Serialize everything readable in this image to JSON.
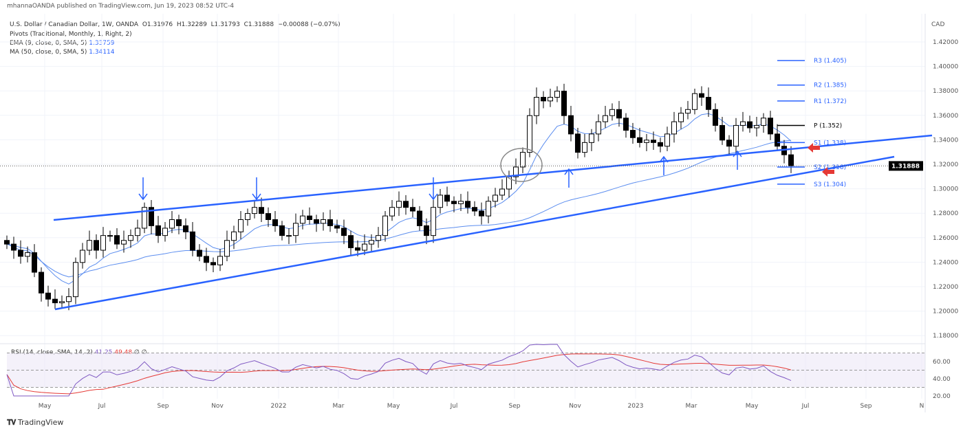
{
  "header": {
    "published": "mhannaOANDA published on TradingView.com, Jun 19, 2023 08:52 UTC-4",
    "symbol": "U.S. Dollar / Canadian Dollar, 1W, OANDA",
    "open": "O1.31976",
    "high": "H1.32289",
    "low": "L1.31793",
    "close": "C1.31888",
    "change": "−0.00088 (−0.07%)",
    "pivots": "Pivots (Traditional, Monthly, 1, Right, 2)",
    "ema_label": "EMA (9, close, 0, SMA, 5)",
    "ema_value": "1.33759",
    "ma_label": "MA (50, close, 0, SMA, 5)",
    "ma_value": "1.34114"
  },
  "rsi": {
    "label": "RSI (14, close, SMA, 14, 2)",
    "value": "41.25",
    "sma_value": "49.48",
    "extra": "∅ ∅"
  },
  "footer": {
    "brand": "TradingView"
  },
  "colors": {
    "up": "#ffffff",
    "down": "#000000",
    "trend": "#2962ff",
    "rsi": "#7e57c2",
    "rsi_ma": "#e53935"
  },
  "chart_data": {
    "type": "candlestick",
    "title": "U.S. Dollar / Canadian Dollar, 1W, OANDA",
    "currency": "CAD",
    "closes": [
      1.255,
      1.25,
      1.245,
      1.248,
      1.232,
      1.215,
      1.21,
      1.207,
      1.208,
      1.212,
      1.24,
      1.25,
      1.258,
      1.25,
      1.262,
      1.262,
      1.255,
      1.258,
      1.262,
      1.268,
      1.285,
      1.27,
      1.262,
      1.268,
      1.275,
      1.27,
      1.265,
      1.25,
      1.245,
      1.24,
      1.238,
      1.245,
      1.258,
      1.265,
      1.275,
      1.28,
      1.285,
      1.28,
      1.275,
      1.27,
      1.262,
      1.262,
      1.272,
      1.278,
      1.275,
      1.272,
      1.275,
      1.27,
      1.268,
      1.262,
      1.252,
      1.25,
      1.255,
      1.258,
      1.262,
      1.278,
      1.285,
      1.29,
      1.285,
      1.282,
      1.27,
      1.262,
      1.285,
      1.295,
      1.29,
      1.288,
      1.29,
      1.285,
      1.282,
      1.278,
      1.29,
      1.295,
      1.3,
      1.31,
      1.318,
      1.33,
      1.36,
      1.375,
      1.372,
      1.375,
      1.38,
      1.36,
      1.345,
      1.33,
      1.338,
      1.345,
      1.355,
      1.36,
      1.365,
      1.358,
      1.348,
      1.342,
      1.338,
      1.34,
      1.338,
      1.335,
      1.345,
      1.355,
      1.362,
      1.365,
      1.378,
      1.375,
      1.365,
      1.352,
      1.34,
      1.335,
      1.352,
      1.355,
      1.35,
      1.352,
      1.358,
      1.345,
      1.335,
      1.328,
      1.319
    ],
    "y_ticks": [
      "1.42000",
      "1.40000",
      "1.38000",
      "1.36000",
      "1.34000",
      "1.32000",
      "1.30000",
      "1.28000",
      "1.26000",
      "1.24000",
      "1.22000",
      "1.20000",
      "1.18000"
    ],
    "ylim": [
      1.17,
      1.43
    ],
    "last_price": "1.31888",
    "x_ticks": [
      "May",
      "Jul",
      "Sep",
      "Nov",
      "2022",
      "Mar",
      "May",
      "Jul",
      "Sep",
      "Nov",
      "2023",
      "Mar",
      "May",
      "Jul",
      "Sep",
      "N"
    ],
    "pivots": [
      {
        "label": "R3 (1.405)",
        "value": 1.405
      },
      {
        "label": "R2 (1.385)",
        "value": 1.385
      },
      {
        "label": "R1 (1.372)",
        "value": 1.372
      },
      {
        "label": "P (1.352)",
        "value": 1.352
      },
      {
        "label": "S1 (1.338)",
        "value": 1.338
      },
      {
        "label": "S2 (1.318)",
        "value": 1.318
      },
      {
        "label": "S3 (1.304)",
        "value": 1.304
      }
    ],
    "trendlines": [
      {
        "name": "upper",
        "from": [
          6.8,
          1.2747
        ],
        "to": [
          134.5,
          1.3438
        ]
      },
      {
        "name": "lower",
        "from": [
          7,
          1.2017
        ],
        "to": [
          129,
          1.3264
        ]
      }
    ],
    "annotations": {
      "down_arrows": [
        19.8,
        36.3,
        62
      ],
      "up_arrows": [
        81.7,
        95.5,
        106.2
      ],
      "red_arrows": [
        1.335,
        1.315
      ]
    },
    "rsi_ticks": [
      "60.00",
      "40.00",
      "20.00"
    ]
  }
}
